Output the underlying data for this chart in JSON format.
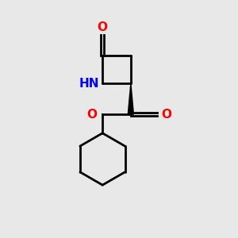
{
  "bg_color": "#e8e8e8",
  "bond_color": "#000000",
  "bond_width": 2.0,
  "atom_colors": {
    "O": "#ff0000",
    "N": "#0000ff",
    "C": "#000000"
  },
  "figsize": [
    3.0,
    3.0
  ],
  "dpi": 100
}
